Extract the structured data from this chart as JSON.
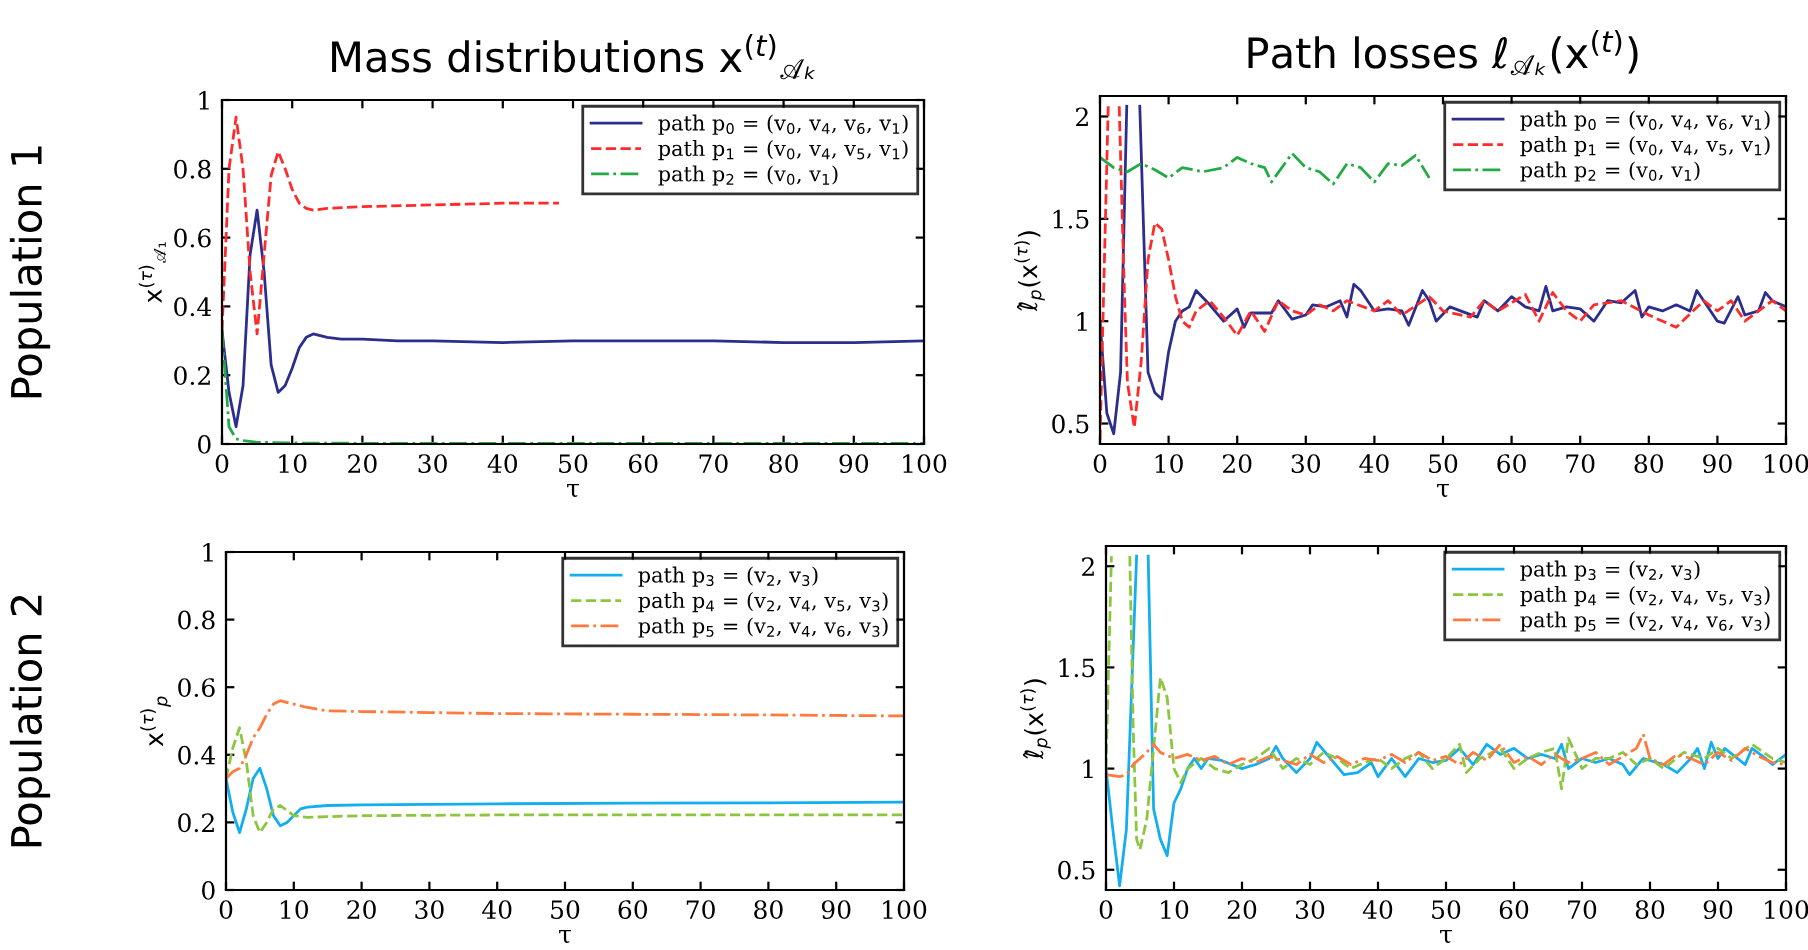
{
  "chart_data": [
    {
      "type": "line",
      "title": "Mass distributions x$^{(t)}$$_{𝒜ₖ}$",
      "xlabel": "τ",
      "ylabel": "x$^{(τ)}$$_{𝒜₁}$",
      "annotations": [
        "Population 1"
      ],
      "xlim": [
        0,
        100
      ],
      "xticks": [
        0,
        10,
        20,
        30,
        40,
        50,
        60,
        70,
        80,
        90,
        100
      ],
      "ylim": [
        0,
        1
      ],
      "yticks": [
        0,
        0.2,
        0.4,
        0.6,
        0.8,
        1
      ],
      "legend": "top right",
      "grid": false,
      "series": [
        {
          "name": "path p$_{0}$ = (v$_{0}$, v$_{4}$, v$_{6}$, v$_{1}$)",
          "color": "#2b2e8c",
          "line_style": "solid",
          "x": [
            0,
            1,
            2,
            3,
            4,
            5,
            6,
            7,
            8,
            9,
            10,
            11,
            12,
            13,
            15,
            17,
            20,
            25,
            30,
            40,
            50,
            60,
            70,
            80,
            90,
            100
          ],
          "values": [
            0.33,
            0.15,
            0.05,
            0.17,
            0.55,
            0.68,
            0.5,
            0.23,
            0.15,
            0.17,
            0.22,
            0.28,
            0.31,
            0.32,
            0.31,
            0.305,
            0.305,
            0.3,
            0.3,
            0.295,
            0.3,
            0.3,
            0.3,
            0.295,
            0.295,
            0.3
          ]
        },
        {
          "name": "path p$_{1}$ = (v$_{0}$, v$_{4}$, v$_{5}$, v$_{1}$)",
          "color": "#ff2a2a",
          "line_style": "dashed",
          "x": [
            0,
            1,
            2,
            3,
            4,
            5,
            6,
            7,
            8,
            9,
            10,
            11,
            12,
            13,
            15,
            20,
            30,
            40,
            48
          ],
          "values": [
            0.33,
            0.8,
            0.95,
            0.8,
            0.5,
            0.32,
            0.55,
            0.78,
            0.85,
            0.8,
            0.74,
            0.7,
            0.685,
            0.68,
            0.685,
            0.69,
            0.695,
            0.7,
            0.7
          ]
        },
        {
          "name": "path p$_{2}$ = (v$_{0}$, v$_{1}$)",
          "color": "#22aa44",
          "line_style": "dashdot",
          "x": [
            0,
            1,
            2,
            3,
            5,
            10,
            20,
            100
          ],
          "values": [
            0.33,
            0.05,
            0.015,
            0.01,
            0.005,
            0.003,
            0.002,
            0.002
          ]
        }
      ]
    },
    {
      "type": "line",
      "title": "Path losses ℓ$_{𝒜ₖ}$(x$^{(t)}$)",
      "xlabel": "τ",
      "ylabel": "ℓ̂$_{p}$(x$^{(τ)}$)",
      "xlim": [
        0,
        100
      ],
      "xticks": [
        0,
        10,
        20,
        30,
        40,
        50,
        60,
        70,
        80,
        90,
        100
      ],
      "ylim": [
        0.4,
        2.1
      ],
      "yticks": [
        0.5,
        1,
        1.5,
        2
      ],
      "legend": "top right",
      "grid": false,
      "series": [
        {
          "name": "path p$_{0}$ = (v$_{0}$, v$_{4}$, v$_{6}$, v$_{1}$)",
          "color": "#2b2e8c",
          "line_style": "solid",
          "x": [
            0,
            1,
            2,
            3,
            3.9,
            4.8,
            5.8,
            7,
            8,
            9,
            10,
            11,
            12,
            13,
            14,
            16,
            18,
            20,
            21,
            22,
            25,
            26,
            28,
            30,
            31,
            33,
            35,
            36,
            37,
            38,
            40,
            42,
            44,
            45,
            47,
            48,
            49,
            51,
            55,
            56,
            58,
            60,
            62,
            64,
            65,
            66,
            68,
            70,
            72,
            74,
            76,
            78,
            79,
            80,
            82,
            84,
            86,
            87,
            88,
            90,
            91,
            93,
            94,
            96,
            97,
            98,
            100
          ],
          "values": [
            1.0,
            0.55,
            0.45,
            0.75,
            2.05,
            null,
            2.05,
            0.75,
            0.65,
            0.62,
            0.85,
            1.0,
            1.05,
            1.07,
            1.15,
            1.08,
            1.0,
            1.06,
            0.97,
            1.04,
            1.04,
            1.1,
            1.01,
            1.03,
            1.08,
            1.07,
            1.1,
            1.02,
            1.18,
            1.15,
            1.05,
            1.06,
            1.05,
            0.98,
            1.15,
            1.1,
            1.0,
            1.07,
            1.02,
            1.1,
            1.05,
            1.12,
            1.07,
            1.05,
            1.17,
            1.05,
            1.07,
            1.06,
            1.0,
            1.1,
            1.09,
            1.15,
            1.02,
            1.07,
            1.05,
            1.08,
            1.05,
            1.15,
            1.1,
            1.0,
            0.99,
            1.12,
            1.03,
            1.05,
            1.14,
            1.1,
            1.07
          ]
        },
        {
          "name": "path p$_{1}$ = (v$_{0}$, v$_{4}$, v$_{5}$, v$_{1}$)",
          "color": "#ff2a2a",
          "line_style": "dashed",
          "x": [
            0,
            1.2,
            2,
            2.8,
            3.5,
            4,
            5,
            6,
            7,
            8,
            9,
            10,
            11,
            12,
            13,
            14,
            16,
            18,
            20,
            22,
            24,
            26,
            28,
            30,
            32,
            34,
            36,
            40,
            42,
            44,
            48,
            50,
            54,
            56,
            58,
            62,
            64,
            66,
            68,
            70,
            72,
            76,
            80,
            84,
            88,
            90,
            92,
            94,
            98,
            100
          ],
          "values": [
            0.42,
            2.05,
            null,
            2.05,
            1.2,
            0.7,
            0.48,
            0.8,
            1.3,
            1.48,
            1.45,
            1.3,
            1.12,
            1.0,
            0.97,
            1.05,
            1.1,
            1.02,
            0.93,
            1.05,
            0.95,
            1.1,
            1.05,
            1.03,
            1.08,
            1.05,
            1.1,
            1.05,
            1.1,
            1.03,
            1.12,
            1.05,
            1.02,
            1.1,
            1.05,
            1.13,
            1.0,
            1.14,
            1.05,
            1.0,
            1.08,
            1.1,
            1.03,
            0.97,
            1.1,
            1.05,
            1.1,
            1.0,
            1.1,
            1.05
          ]
        },
        {
          "name": "path p$_{2}$ = (v$_{0}$, v$_{1}$)",
          "color": "#22aa44",
          "line_style": "dashdot",
          "x": [
            0,
            2,
            4,
            6,
            8,
            10,
            12,
            15,
            18,
            20,
            22,
            24,
            25,
            28,
            30,
            32,
            34,
            36,
            38,
            40,
            42,
            44,
            46,
            48
          ],
          "values": [
            1.8,
            1.75,
            1.73,
            1.77,
            1.74,
            1.7,
            1.75,
            1.73,
            1.75,
            1.8,
            1.77,
            1.75,
            1.68,
            1.82,
            1.75,
            1.73,
            1.67,
            1.77,
            1.75,
            1.68,
            1.77,
            1.76,
            1.81,
            1.7
          ]
        }
      ]
    },
    {
      "type": "line",
      "xlabel": "τ",
      "ylabel": "x$^{(τ)}$$_{p}$",
      "annotations": [
        "Population 2"
      ],
      "xlim": [
        0,
        100
      ],
      "xticks": [
        0,
        10,
        20,
        30,
        40,
        50,
        60,
        70,
        80,
        90,
        100
      ],
      "ylim": [
        0,
        1
      ],
      "yticks": [
        0,
        0.2,
        0.4,
        0.6,
        0.8,
        1
      ],
      "legend": "top right",
      "grid": false,
      "series": [
        {
          "name": "path p$_{3}$ = (v$_{2}$, v$_{3}$)",
          "color": "#12aef0",
          "line_style": "solid",
          "x": [
            0,
            1,
            2,
            3,
            4,
            5,
            6,
            7,
            8,
            9,
            10,
            11,
            12,
            15,
            20,
            40,
            60,
            80,
            100
          ],
          "values": [
            0.33,
            0.23,
            0.17,
            0.24,
            0.33,
            0.36,
            0.3,
            0.22,
            0.19,
            0.2,
            0.22,
            0.24,
            0.245,
            0.25,
            0.252,
            0.255,
            0.257,
            0.258,
            0.26
          ]
        },
        {
          "name": "path p$_{4}$ = (v$_{2}$, v$_{4}$, v$_{5}$, v$_{3}$)",
          "color": "#8cc63f",
          "line_style": "dashed",
          "x": [
            0,
            1,
            2,
            3,
            4,
            5,
            6,
            7,
            8,
            9,
            10,
            12,
            15,
            20,
            40,
            60,
            80,
            100
          ],
          "values": [
            0.33,
            0.42,
            0.48,
            0.38,
            0.22,
            0.17,
            0.2,
            0.24,
            0.25,
            0.235,
            0.22,
            0.215,
            0.217,
            0.22,
            0.222,
            0.222,
            0.222,
            0.222
          ]
        },
        {
          "name": "path p$_{5}$ = (v$_{2}$, v$_{4}$, v$_{6}$, v$_{3}$)",
          "color": "#ff7a3c",
          "line_style": "dashdot",
          "x": [
            0,
            1,
            2,
            3,
            4,
            5,
            6,
            7,
            8,
            10,
            12,
            15,
            20,
            30,
            40,
            60,
            80,
            100
          ],
          "values": [
            0.33,
            0.35,
            0.36,
            0.4,
            0.45,
            0.48,
            0.52,
            0.55,
            0.56,
            0.55,
            0.54,
            0.53,
            0.528,
            0.525,
            0.522,
            0.52,
            0.518,
            0.515
          ]
        }
      ]
    },
    {
      "type": "line",
      "xlabel": "τ",
      "ylabel": "ℓ̂$_{p}$(x$^{(τ)}$)",
      "xlim": [
        0,
        100
      ],
      "xticks": [
        0,
        10,
        20,
        30,
        40,
        50,
        60,
        70,
        80,
        90,
        100
      ],
      "ylim": [
        0.4,
        2.1
      ],
      "yticks": [
        0.5,
        1,
        1.5,
        2
      ],
      "legend": "top right",
      "grid": false,
      "series": [
        {
          "name": "path p$_{3}$ = (v$_{2}$, v$_{3}$)",
          "color": "#12aef0",
          "line_style": "solid",
          "x": [
            0,
            1,
            2,
            3,
            4.5,
            5.3,
            6.2,
            7,
            8,
            9,
            10,
            11,
            12,
            13,
            14,
            15,
            17,
            20,
            22,
            24,
            25,
            26,
            28,
            30,
            31,
            33,
            35,
            37,
            39,
            40,
            42,
            44,
            46,
            48,
            50,
            52,
            54,
            56,
            58,
            60,
            62,
            64,
            66,
            67,
            68,
            70,
            72,
            74,
            76,
            77,
            79,
            82,
            84,
            86,
            87,
            88,
            89,
            90,
            91,
            94,
            95,
            97,
            98,
            100
          ],
          "values": [
            1.0,
            0.7,
            0.42,
            0.7,
            2.05,
            null,
            2.05,
            0.8,
            0.65,
            0.57,
            0.83,
            0.9,
            1.0,
            1.05,
            1.0,
            1.05,
            1.04,
            1.0,
            1.02,
            1.05,
            1.11,
            1.05,
            0.98,
            1.05,
            1.13,
            1.05,
            0.97,
            0.98,
            1.03,
            0.96,
            1.05,
            0.96,
            1.05,
            1.03,
            1.04,
            1.1,
            1.02,
            1.12,
            1.07,
            1.1,
            1.05,
            1.07,
            1.05,
            1.12,
            1.0,
            1.05,
            1.03,
            1.05,
            1.02,
            0.97,
            1.05,
            1.02,
            0.98,
            1.05,
            1.1,
            1.0,
            1.13,
            1.05,
            1.1,
            1.02,
            1.1,
            1.05,
            1.02,
            1.07
          ]
        },
        {
          "name": "path p$_{4}$ = (v$_{2}$, v$_{4}$, v$_{5}$, v$_{3}$)",
          "color": "#8cc63f",
          "line_style": "dashed",
          "x": [
            0,
            0.8,
            2,
            3.5,
            4,
            4.5,
            5,
            6,
            7,
            8,
            9,
            10,
            11,
            12,
            14,
            16,
            18,
            20,
            22,
            24,
            26,
            28,
            30,
            32,
            34,
            36,
            38,
            40,
            42,
            44,
            46,
            48,
            50,
            52,
            53,
            55,
            58,
            60,
            62,
            64,
            66,
            67,
            68,
            70,
            72,
            74,
            76,
            78,
            80,
            82,
            85,
            88,
            90,
            92,
            95,
            98,
            100
          ],
          "values": [
            1.0,
            2.05,
            null,
            2.05,
            1.2,
            0.65,
            0.6,
            0.75,
            1.1,
            1.45,
            1.35,
            1.0,
            0.93,
            1.0,
            1.05,
            1.0,
            0.98,
            1.02,
            1.05,
            1.1,
            1.0,
            1.05,
            1.02,
            1.08,
            1.05,
            1.0,
            1.03,
            1.05,
            1.0,
            1.05,
            1.08,
            1.0,
            1.05,
            1.12,
            0.98,
            1.05,
            1.1,
            1.0,
            1.05,
            1.08,
            1.1,
            0.9,
            1.15,
            1.0,
            1.05,
            1.05,
            1.08,
            1.02,
            1.05,
            1.0,
            1.08,
            1.05,
            1.1,
            1.05,
            1.12,
            1.05,
            1.03
          ]
        },
        {
          "name": "path p$_{5}$ = (v$_{2}$, v$_{4}$, v$_{6}$, v$_{3}$)",
          "color": "#ff7a3c",
          "line_style": "dashdot",
          "x": [
            0,
            2,
            3,
            4,
            5,
            6,
            7,
            8,
            10,
            12,
            14,
            16,
            18,
            20,
            22,
            24,
            26,
            28,
            30,
            32,
            34,
            36,
            38,
            40,
            42,
            44,
            46,
            48,
            50,
            52,
            54,
            56,
            58,
            60,
            62,
            64,
            66,
            68,
            70,
            72,
            74,
            76,
            78,
            79,
            80,
            82,
            84,
            86,
            88,
            90,
            92,
            94,
            96,
            98,
            100
          ],
          "values": [
            0.97,
            0.96,
            0.97,
            1.02,
            1.05,
            1.08,
            1.12,
            1.08,
            1.05,
            1.07,
            1.04,
            1.06,
            1.02,
            1.05,
            1.03,
            1.06,
            1.04,
            1.02,
            1.07,
            1.03,
            1.06,
            1.02,
            1.05,
            1.04,
            1.07,
            1.03,
            1.08,
            1.04,
            1.06,
            1.02,
            1.08,
            1.04,
            1.12,
            1.03,
            1.06,
            1.02,
            1.07,
            1.03,
            1.05,
            1.08,
            1.02,
            1.06,
            1.1,
            1.17,
            1.05,
            1.02,
            1.07,
            1.05,
            1.02,
            1.08,
            1.04,
            1.1,
            1.06,
            1.03,
            1.02
          ]
        }
      ]
    }
  ]
}
